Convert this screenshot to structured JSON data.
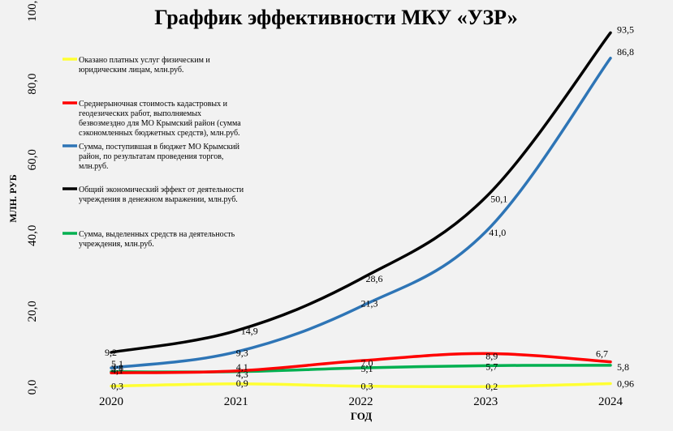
{
  "chart_data": {
    "type": "line",
    "title": "Граффик эффективности МКУ «УЗР»",
    "xlabel": "ГОД",
    "ylabel": "МЛН. РУБ",
    "categories": [
      "2020",
      "2021",
      "2022",
      "2023",
      "2024"
    ],
    "ylim": [
      0,
      100
    ],
    "yticks": [
      "0,0",
      "20,0",
      "40,0",
      "60,0",
      "80,0",
      "100,0"
    ],
    "legend_position": "left",
    "series": [
      {
        "name": "Оказано платных услуг физическим и юридическим лицам, млн.руб.",
        "color": "#ffff33",
        "values": [
          0.3,
          0.9,
          0.3,
          0.2,
          0.96
        ],
        "labels": [
          "0,3",
          "0,9",
          "0,3",
          "0,2",
          "0,96"
        ]
      },
      {
        "name": "Среднерыночная стоимость кадастровых и геодезических работ, выполняемых безвозмездно для МО Крымский район (сумма сэкономленных бюджетных средств), млн.руб.",
        "color": "#ff0000",
        "values": [
          3.8,
          4.3,
          7.0,
          8.9,
          6.7
        ],
        "labels": [
          "3,8",
          "4,3",
          "7,0",
          "8,9",
          "6,7"
        ]
      },
      {
        "name": "Сумма, поступившая в бюджет МО Крымский район, по результатам проведения торгов, млн.руб.",
        "color": "#2e75b6",
        "values": [
          5.1,
          9.3,
          21.3,
          41.0,
          86.8
        ],
        "labels": [
          "5,1",
          "9,3",
          "21,3",
          "41,0",
          "86,8"
        ]
      },
      {
        "name": "Общий экономический эффект от деятельности учреждения в денежном выражении, млн.руб.",
        "color": "#000000",
        "values": [
          9.2,
          14.9,
          28.6,
          50.1,
          93.5
        ],
        "labels": [
          "9,2",
          "14,9",
          "28,6",
          "50,1",
          "93,5"
        ]
      },
      {
        "name": "Сумма, выделенных средств на деятельность учреждения, млн.руб.",
        "color": "#00b050",
        "values": [
          4.1,
          4.1,
          5.1,
          5.7,
          5.8
        ],
        "labels": [
          "4,1",
          "4,1",
          "5,1",
          "5,7",
          "5,8"
        ]
      }
    ]
  }
}
